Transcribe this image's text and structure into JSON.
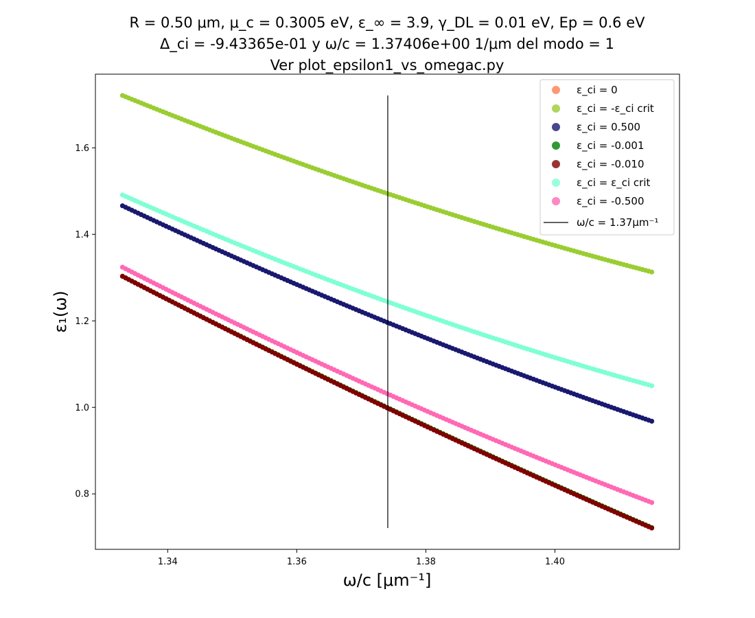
{
  "title_lines": [
    "R = 0.50 μm, μ_c = 0.3005 eV, ε_∞ = 3.9, γ_DL = 0.01 eV, Ep = 0.6 eV",
    "Δ_ci = -9.43365e-01 y ω/c = 1.37406e+00 1/μm del modo = 1",
    "Ver plot_epsilon1_vs_omegac.py"
  ],
  "chart_data": {
    "type": "scatter",
    "title": "R = 0.50 μm, μ_c = 0.3005 eV, ε_∞ = 3.9, γ_DL = 0.01 eV, Ep = 0.6 eV / Δ_ci = -9.43365e-01 y ω/c = 1.37406e+00 1/μm del modo = 1 / Ver plot_epsilon1_vs_omegac.py",
    "xlabel": "ω/c [μm⁻¹]",
    "ylabel": "ε₁(ω)",
    "xlim": [
      1.3288,
      1.4193
    ],
    "ylim": [
      0.6718,
      1.7703
    ],
    "xticks": [
      "1.34",
      "1.36",
      "1.38",
      "1.40"
    ],
    "yticks": [
      "0.8",
      "1.0",
      "1.2",
      "1.4",
      "1.6"
    ],
    "x_range": [
      1.333,
      1.415
    ],
    "grid": false,
    "legend_position": "top-right",
    "series": [
      {
        "name": "ε_ci = 0",
        "color": "#ff7f50",
        "y_at": {
          "1.333": 1.303,
          "1.3741": 0.999,
          "1.415": 0.722
        }
      },
      {
        "name": "ε_ci = -ε_ci crit",
        "color": "#9acd32",
        "y_at": {
          "1.333": 1.721,
          "1.3741": 1.494,
          "1.415": 1.313
        }
      },
      {
        "name": "ε_ci = 0.500",
        "color": "#191970",
        "y_at": {
          "1.333": 1.466,
          "1.3741": 1.196,
          "1.415": 0.968
        }
      },
      {
        "name": "ε_ci = -0.001",
        "color": "#008000",
        "y_at": {
          "1.333": 1.303,
          "1.3741": 0.999,
          "1.415": 0.722
        }
      },
      {
        "name": "ε_ci = -0.010",
        "color": "#800000",
        "y_at": {
          "1.333": 1.303,
          "1.3741": 0.998,
          "1.415": 0.721
        }
      },
      {
        "name": "ε_ci = ε_ci crit",
        "color": "#7fffd4",
        "y_at": {
          "1.333": 1.491,
          "1.3741": 1.244,
          "1.415": 1.05
        }
      },
      {
        "name": "ε_ci = -0.500",
        "color": "#ff69b4",
        "y_at": {
          "1.333": 1.324,
          "1.3741": 1.031,
          "1.415": 0.78
        }
      }
    ],
    "vline": {
      "label": "ω/c = 1.37μm⁻¹",
      "x": 1.3741,
      "y_range": [
        0.721,
        1.721
      ],
      "color": "#000000"
    }
  }
}
